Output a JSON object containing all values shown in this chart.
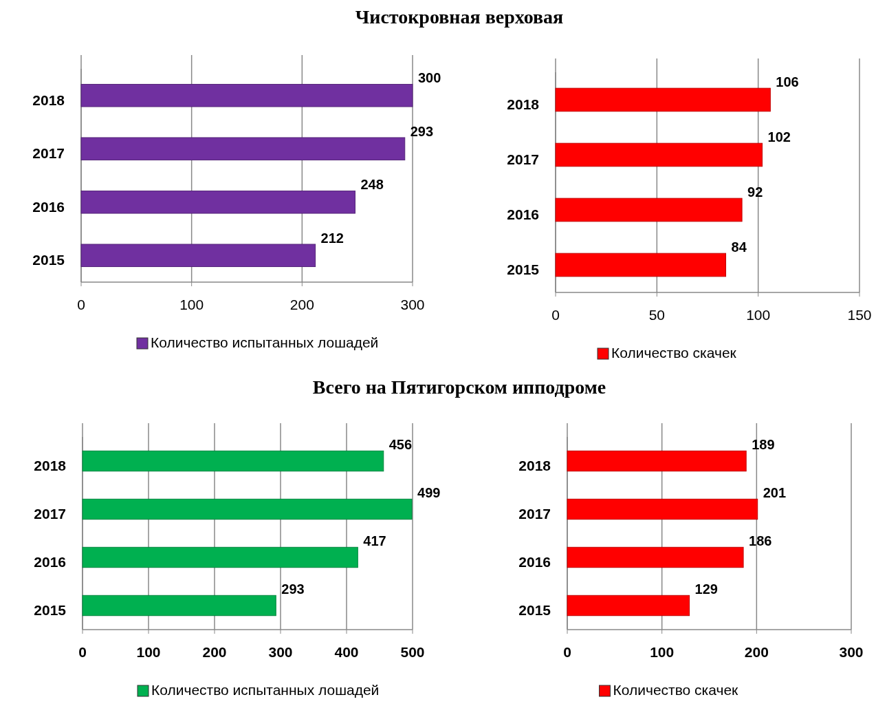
{
  "chart_data": [
    {
      "type": "bar",
      "orientation": "horizontal",
      "title": "Чистокровная верховая",
      "categories": [
        "2018",
        "2017",
        "2016",
        "2015"
      ],
      "series": [
        {
          "name": "Количество испытанных лошадей",
          "color": "#7030a0",
          "values": [
            300,
            293,
            248,
            212
          ]
        }
      ],
      "xlim": [
        0,
        300
      ],
      "xticks": [
        0,
        100,
        200,
        300
      ],
      "grid": "x",
      "legend": "bottom",
      "data_labels": true
    },
    {
      "type": "bar",
      "orientation": "horizontal",
      "categories": [
        "2018",
        "2017",
        "2016",
        "2015"
      ],
      "series": [
        {
          "name": "Количество скачек",
          "color": "#ff0000",
          "values": [
            106,
            102,
            92,
            84
          ]
        }
      ],
      "xlim": [
        0,
        150
      ],
      "xticks": [
        0,
        50,
        100,
        150
      ],
      "grid": "x",
      "legend": "bottom",
      "data_labels": true
    },
    {
      "type": "bar",
      "orientation": "horizontal",
      "title": "Всего на Пятигорском ипподроме",
      "categories": [
        "2018",
        "2017",
        "2016",
        "2015"
      ],
      "series": [
        {
          "name": "Количество испытанных лошадей",
          "color": "#00b050",
          "values": [
            456,
            499,
            417,
            293
          ]
        }
      ],
      "xlim": [
        0,
        500
      ],
      "xticks": [
        0,
        100,
        200,
        300,
        400,
        500
      ],
      "grid": "x",
      "legend": "bottom",
      "data_labels": true
    },
    {
      "type": "bar",
      "orientation": "horizontal",
      "categories": [
        "2018",
        "2017",
        "2016",
        "2015"
      ],
      "series": [
        {
          "name": "Количество скачек",
          "color": "#ff0000",
          "values": [
            189,
            201,
            186,
            129
          ]
        }
      ],
      "xlim": [
        0,
        300
      ],
      "xticks": [
        0,
        100,
        200,
        300
      ],
      "grid": "x",
      "legend": "bottom",
      "data_labels": true
    }
  ]
}
